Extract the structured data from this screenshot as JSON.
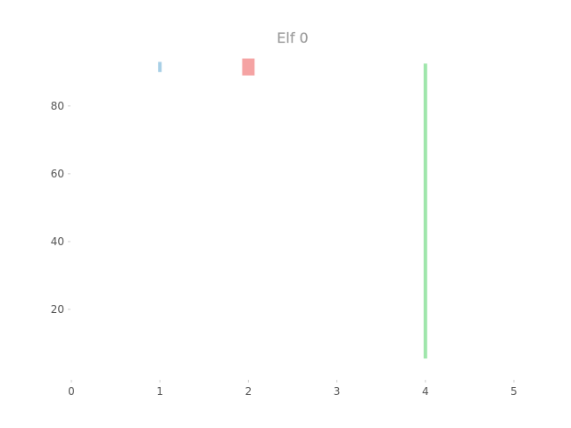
{
  "chart_data": {
    "type": "bar",
    "title": "Elf 0",
    "xlabel": "",
    "ylabel": "",
    "xlim": [
      0,
      5
    ],
    "ylim": [
      0,
      96
    ],
    "xticks": [
      0,
      1,
      2,
      3,
      4,
      5
    ],
    "yticks": [
      20,
      40,
      60,
      80
    ],
    "grid": false,
    "legend": false,
    "bars": [
      {
        "x": 1,
        "y_bottom": 90,
        "y_top": 93,
        "width": 0.04,
        "color": "#a8cfe6"
      },
      {
        "x": 2,
        "y_bottom": 89,
        "y_top": 94,
        "width": 0.14,
        "color": "#f5a3a3"
      },
      {
        "x": 4,
        "y_bottom": 5.5,
        "y_top": 92.5,
        "width": 0.04,
        "color": "#9fe6ab"
      }
    ]
  }
}
